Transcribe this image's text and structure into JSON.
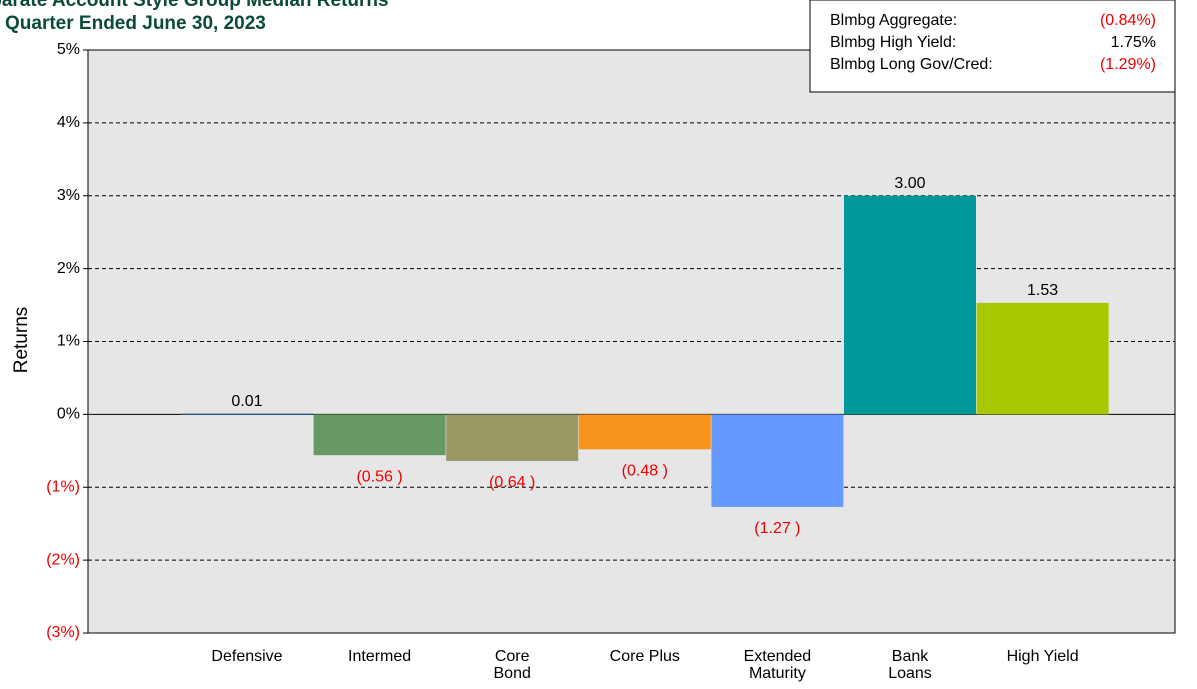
{
  "chart_data": {
    "type": "bar",
    "title": "Separate Account Style Group Median Returns",
    "subtitle": "Quarter Ended June 30, 2023",
    "y_label": "Returns",
    "categories": [
      "Defensive",
      "Intermed",
      "Core\nBond",
      "Core Plus",
      "Extended\nMaturity",
      "Bank\nLoans",
      "High Yield"
    ],
    "values": [
      0.01,
      -0.56,
      -0.64,
      -0.48,
      -1.27,
      3.0,
      1.53
    ],
    "value_labels": [
      "0.01",
      "(0.56 )",
      "(0.64 )",
      "(0.48 )",
      "(1.27 )",
      "3.00",
      "1.53"
    ],
    "colors": [
      "#1f5fa0",
      "#669966",
      "#999966",
      "#f7941d",
      "#6699ff",
      "#009999",
      "#a8c800"
    ],
    "ylim": [
      -3,
      5
    ],
    "yticks": [
      {
        "value": -3,
        "label": "(3%)"
      },
      {
        "value": -2,
        "label": "(2%)"
      },
      {
        "value": -1,
        "label": "(1%)"
      },
      {
        "value": 0,
        "label": "0%"
      },
      {
        "value": 1,
        "label": "1%"
      },
      {
        "value": 2,
        "label": "2%"
      },
      {
        "value": 3,
        "label": "3%"
      },
      {
        "value": 4,
        "label": "4%"
      },
      {
        "value": 5,
        "label": "5%"
      }
    ],
    "grid": true,
    "benchmarks": [
      {
        "name": "Blmbg Aggregate:",
        "value": -0.84,
        "label": "(0.84%)"
      },
      {
        "name": "Blmbg High Yield:",
        "value": 1.75,
        "label": "1.75%"
      },
      {
        "name": "Blmbg Long Gov/Cred:",
        "value": -1.29,
        "label": "(1.29%)"
      }
    ]
  }
}
